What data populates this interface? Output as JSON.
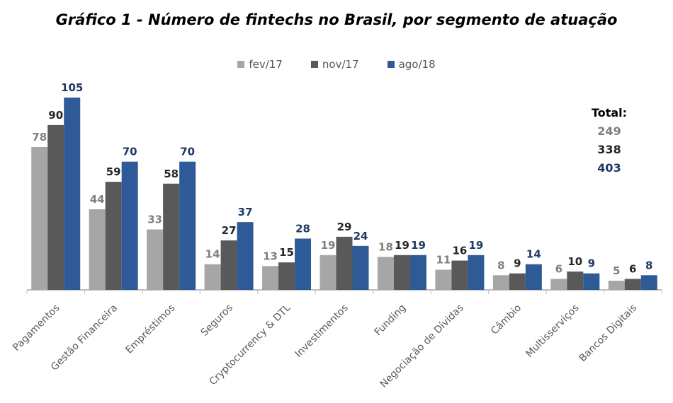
{
  "chart_data": {
    "type": "bar",
    "title": "Gráfico 1 - Número de fintechs no Brasil, por segmento de atuação",
    "categories": [
      "Pagamentos",
      "Gestão Financeira",
      "Empréstimos",
      "Seguros",
      "Cryptocurrency & DTL",
      "Investimentos",
      "Funding",
      "Negociação de Dívidas",
      "Câmbio",
      "Multisserviços",
      "Bancos Digitais"
    ],
    "series": [
      {
        "name": "fev/17",
        "color": "#a6a6a6",
        "label_color": "#7f7f7f",
        "values": [
          78,
          44,
          33,
          14,
          13,
          19,
          18,
          11,
          8,
          6,
          5
        ]
      },
      {
        "name": "nov/17",
        "color": "#595959",
        "label_color": "#262626",
        "values": [
          90,
          59,
          58,
          27,
          15,
          29,
          19,
          16,
          9,
          10,
          6
        ]
      },
      {
        "name": "ago/18",
        "color": "#2e5a97",
        "label_color": "#1f3864",
        "values": [
          105,
          70,
          70,
          37,
          28,
          24,
          19,
          19,
          14,
          9,
          8
        ]
      }
    ],
    "ylim": [
      0,
      105
    ],
    "legend_position": "top-center",
    "grid": false,
    "total": {
      "label": "Total:",
      "values": [
        "249",
        "338",
        "403"
      ]
    }
  }
}
